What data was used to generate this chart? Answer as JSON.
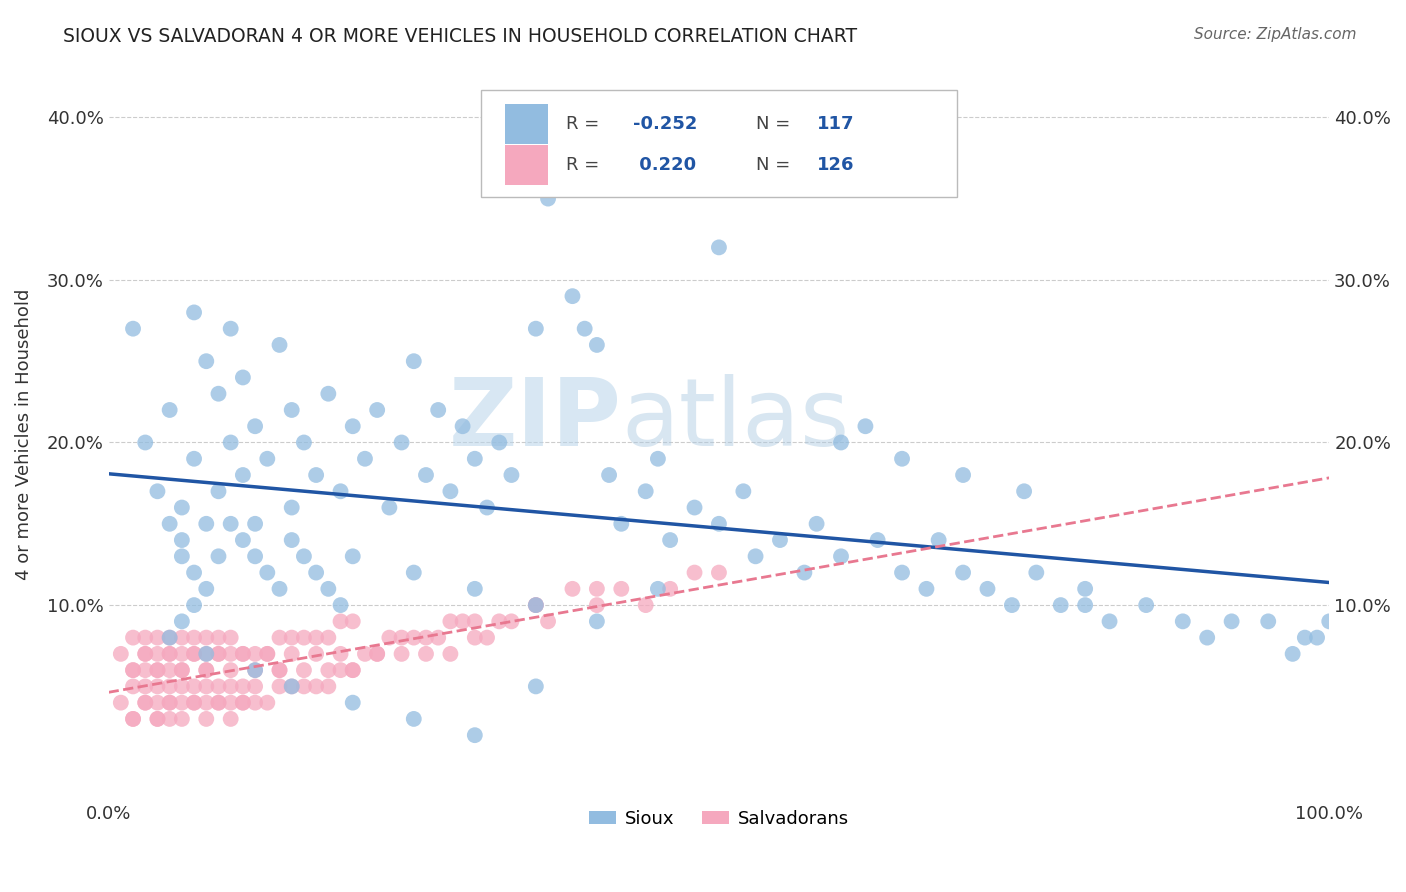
{
  "title": "SIOUX VS SALVADORAN 4 OR MORE VEHICLES IN HOUSEHOLD CORRELATION CHART",
  "source": "Source: ZipAtlas.com",
  "ylabel": "4 or more Vehicles in Household",
  "xlim": [
    0.0,
    1.0
  ],
  "ylim": [
    -0.02,
    0.43
  ],
  "sioux_R": -0.252,
  "sioux_N": 117,
  "salvadoran_R": 0.22,
  "salvadoran_N": 126,
  "sioux_color": "#92bce0",
  "salvadoran_color": "#f5a8be",
  "sioux_line_color": "#2055a4",
  "salvadoran_line_color": "#e87890",
  "watermark_zip": "ZIP",
  "watermark_atlas": "atlas",
  "legend_labels": [
    "Sioux",
    "Salvadorans"
  ],
  "sioux_x": [
    0.02,
    0.03,
    0.04,
    0.05,
    0.05,
    0.06,
    0.06,
    0.07,
    0.07,
    0.08,
    0.08,
    0.09,
    0.09,
    0.1,
    0.1,
    0.11,
    0.11,
    0.12,
    0.12,
    0.13,
    0.14,
    0.15,
    0.15,
    0.16,
    0.17,
    0.18,
    0.19,
    0.2,
    0.21,
    0.22,
    0.23,
    0.24,
    0.25,
    0.26,
    0.27,
    0.28,
    0.29,
    0.3,
    0.31,
    0.32,
    0.33,
    0.35,
    0.36,
    0.38,
    0.39,
    0.4,
    0.41,
    0.42,
    0.44,
    0.45,
    0.46,
    0.48,
    0.5,
    0.52,
    0.53,
    0.55,
    0.57,
    0.58,
    0.6,
    0.62,
    0.63,
    0.65,
    0.67,
    0.68,
    0.7,
    0.72,
    0.74,
    0.76,
    0.78,
    0.8,
    0.82,
    0.85,
    0.88,
    0.9,
    0.92,
    0.95,
    0.97,
    0.98,
    0.99,
    1.0,
    0.06,
    0.07,
    0.08,
    0.09,
    0.1,
    0.11,
    0.12,
    0.13,
    0.14,
    0.15,
    0.16,
    0.17,
    0.18,
    0.19,
    0.2,
    0.25,
    0.3,
    0.35,
    0.4,
    0.45,
    0.05,
    0.06,
    0.07,
    0.08,
    0.12,
    0.15,
    0.2,
    0.25,
    0.3,
    0.35,
    0.4,
    0.5,
    0.6,
    0.65,
    0.7,
    0.75,
    0.8
  ],
  "sioux_y": [
    0.27,
    0.2,
    0.17,
    0.15,
    0.22,
    0.16,
    0.13,
    0.28,
    0.19,
    0.25,
    0.15,
    0.23,
    0.17,
    0.27,
    0.2,
    0.24,
    0.18,
    0.21,
    0.15,
    0.19,
    0.26,
    0.22,
    0.16,
    0.2,
    0.18,
    0.23,
    0.17,
    0.21,
    0.19,
    0.22,
    0.16,
    0.2,
    0.25,
    0.18,
    0.22,
    0.17,
    0.21,
    0.19,
    0.16,
    0.2,
    0.18,
    0.27,
    0.35,
    0.29,
    0.27,
    0.26,
    0.18,
    0.15,
    0.17,
    0.19,
    0.14,
    0.16,
    0.15,
    0.17,
    0.13,
    0.14,
    0.12,
    0.15,
    0.13,
    0.21,
    0.14,
    0.12,
    0.11,
    0.14,
    0.12,
    0.11,
    0.1,
    0.12,
    0.1,
    0.11,
    0.09,
    0.1,
    0.09,
    0.08,
    0.09,
    0.09,
    0.07,
    0.08,
    0.08,
    0.09,
    0.14,
    0.12,
    0.11,
    0.13,
    0.15,
    0.14,
    0.13,
    0.12,
    0.11,
    0.14,
    0.13,
    0.12,
    0.11,
    0.1,
    0.13,
    0.12,
    0.11,
    0.1,
    0.09,
    0.11,
    0.08,
    0.09,
    0.1,
    0.07,
    0.06,
    0.05,
    0.04,
    0.03,
    0.02,
    0.05,
    0.38,
    0.32,
    0.2,
    0.19,
    0.18,
    0.17,
    0.1
  ],
  "salvadoran_x": [
    0.01,
    0.01,
    0.02,
    0.02,
    0.02,
    0.02,
    0.03,
    0.03,
    0.03,
    0.03,
    0.03,
    0.04,
    0.04,
    0.04,
    0.04,
    0.04,
    0.04,
    0.05,
    0.05,
    0.05,
    0.05,
    0.05,
    0.05,
    0.06,
    0.06,
    0.06,
    0.06,
    0.06,
    0.07,
    0.07,
    0.07,
    0.07,
    0.08,
    0.08,
    0.08,
    0.08,
    0.08,
    0.09,
    0.09,
    0.09,
    0.09,
    0.1,
    0.1,
    0.1,
    0.1,
    0.11,
    0.11,
    0.11,
    0.12,
    0.12,
    0.12,
    0.13,
    0.13,
    0.14,
    0.14,
    0.14,
    0.15,
    0.15,
    0.16,
    0.16,
    0.17,
    0.17,
    0.18,
    0.18,
    0.19,
    0.19,
    0.2,
    0.2,
    0.21,
    0.22,
    0.23,
    0.24,
    0.25,
    0.26,
    0.27,
    0.28,
    0.29,
    0.3,
    0.31,
    0.32,
    0.33,
    0.35,
    0.36,
    0.38,
    0.4,
    0.42,
    0.44,
    0.46,
    0.48,
    0.5,
    0.02,
    0.03,
    0.04,
    0.05,
    0.06,
    0.07,
    0.08,
    0.09,
    0.1,
    0.11,
    0.12,
    0.13,
    0.14,
    0.15,
    0.16,
    0.17,
    0.18,
    0.19,
    0.2,
    0.22,
    0.24,
    0.26,
    0.28,
    0.3,
    0.35,
    0.4,
    0.02,
    0.03,
    0.04,
    0.05,
    0.06,
    0.07,
    0.08,
    0.09,
    0.1,
    0.11
  ],
  "salvadoran_y": [
    0.04,
    0.07,
    0.05,
    0.08,
    0.03,
    0.06,
    0.05,
    0.07,
    0.04,
    0.08,
    0.06,
    0.04,
    0.07,
    0.05,
    0.08,
    0.03,
    0.06,
    0.04,
    0.07,
    0.05,
    0.08,
    0.03,
    0.06,
    0.04,
    0.07,
    0.05,
    0.08,
    0.06,
    0.04,
    0.07,
    0.05,
    0.08,
    0.04,
    0.07,
    0.05,
    0.08,
    0.06,
    0.04,
    0.07,
    0.05,
    0.08,
    0.04,
    0.07,
    0.05,
    0.08,
    0.04,
    0.07,
    0.05,
    0.04,
    0.07,
    0.05,
    0.04,
    0.07,
    0.05,
    0.08,
    0.06,
    0.05,
    0.08,
    0.05,
    0.08,
    0.05,
    0.08,
    0.05,
    0.08,
    0.06,
    0.09,
    0.06,
    0.09,
    0.07,
    0.07,
    0.08,
    0.07,
    0.08,
    0.07,
    0.08,
    0.07,
    0.09,
    0.08,
    0.08,
    0.09,
    0.09,
    0.1,
    0.09,
    0.11,
    0.1,
    0.11,
    0.1,
    0.11,
    0.12,
    0.12,
    0.06,
    0.07,
    0.06,
    0.07,
    0.06,
    0.07,
    0.06,
    0.07,
    0.06,
    0.07,
    0.06,
    0.07,
    0.06,
    0.07,
    0.06,
    0.07,
    0.06,
    0.07,
    0.06,
    0.07,
    0.08,
    0.08,
    0.09,
    0.09,
    0.1,
    0.11,
    0.03,
    0.04,
    0.03,
    0.04,
    0.03,
    0.04,
    0.03,
    0.04,
    0.03,
    0.04
  ]
}
